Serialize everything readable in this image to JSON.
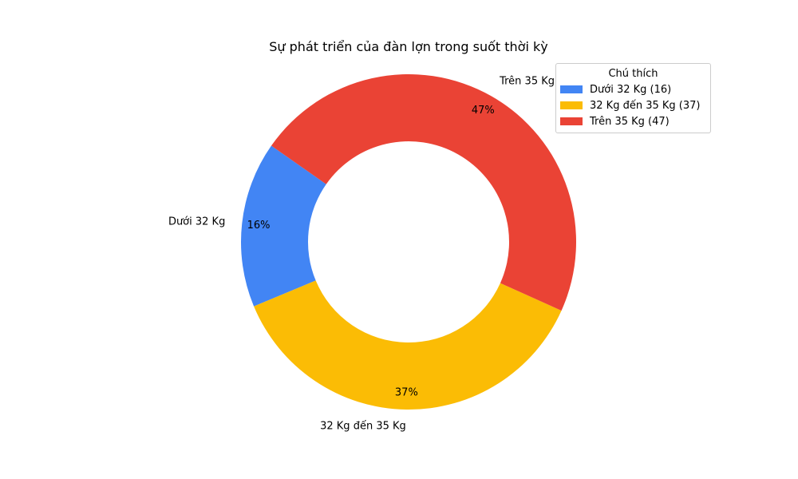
{
  "chart_data": {
    "type": "pie",
    "donut": true,
    "title": "Sự phát triển của đàn lợn trong suốt thời kỳ",
    "categories": [
      "Dưới 32 Kg",
      "32 Kg đến 35 Kg",
      "Trên 35 Kg"
    ],
    "values": [
      16,
      37,
      47
    ],
    "percent_labels": [
      "16%",
      "37%",
      "47%"
    ],
    "colors": [
      "#4285F4",
      "#FBBC05",
      "#EA4335"
    ],
    "legend": {
      "title": "Chú thích",
      "placement": "top-right",
      "entries": [
        "Dưới 32 Kg (16)",
        "32 Kg đến 35 Kg (37)",
        "Trên 35 Kg (47)"
      ]
    }
  }
}
